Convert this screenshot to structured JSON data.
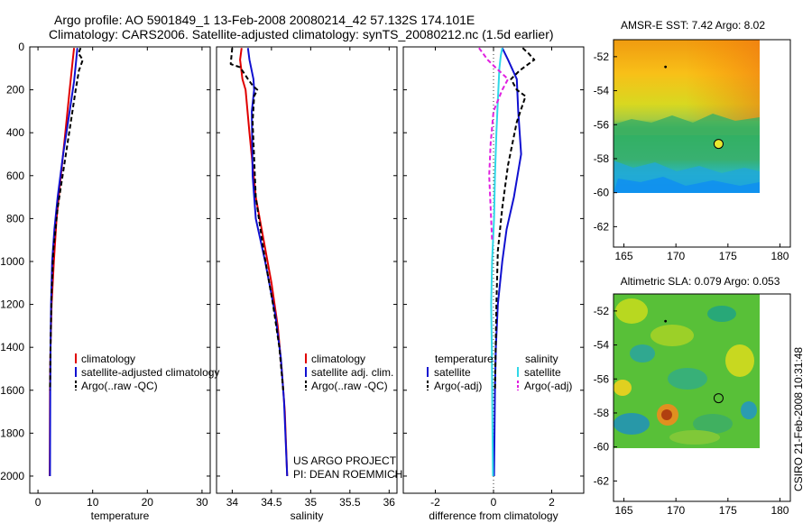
{
  "header": {
    "title_line1": "Argo profile: AO 5901849_1 13-Feb-2008 20080214_42 57.132S 174.101E",
    "title_line2": "Climatology: CARS2006. Satellite-adjusted climatology: synTS_20080212.nc (1.5d earlier)"
  },
  "footer": {
    "credit": "CSIRO 21-Feb-2008 10:31:48",
    "project_line1": "US ARGO PROJECT",
    "project_line2": "PI: DEAN ROEMMICH"
  },
  "colors": {
    "climatology": "#e00000",
    "satellite": "#1010d0",
    "argo": "#000000",
    "argo_adj_salinity": "#e020e0",
    "satellite_salinity": "#30d8e8"
  },
  "chart_data": [
    {
      "id": "temperature",
      "type": "line",
      "xlabel": "temperature",
      "ylabel": "",
      "xlim": [
        -1.5,
        31.5
      ],
      "ylim": [
        2080,
        0
      ],
      "xticks": [
        0,
        10,
        20,
        30
      ],
      "xtick_labels": [
        "0",
        "10",
        "20",
        "30"
      ],
      "yticks": [
        0,
        200,
        400,
        600,
        800,
        1000,
        1200,
        1400,
        1600,
        1800,
        2000
      ],
      "ytick_labels": [
        "0",
        "200",
        "400",
        "600",
        "800",
        "1000",
        "1200",
        "1400",
        "1600",
        "1800",
        "2000"
      ],
      "legend": [
        "climatology",
        "satellite-adjusted climatology",
        "Argo(..raw -QC)"
      ],
      "series": [
        {
          "name": "climatology",
          "color": "#e00000",
          "dash": "",
          "x": [
            6.6,
            6.3,
            5.8,
            5.0,
            4.2,
            3.4,
            2.9,
            2.5,
            2.3,
            2.2,
            2.15
          ],
          "y": [
            5,
            75,
            200,
            400,
            600,
            800,
            1000,
            1200,
            1400,
            1600,
            2000
          ]
        },
        {
          "name": "satellite-adjusted climatology",
          "color": "#1010d0",
          "dash": "",
          "x": [
            7.2,
            7.0,
            6.6,
            5.8,
            4.6,
            3.6,
            3.0,
            2.6,
            2.4,
            2.3,
            2.25,
            2.2
          ],
          "y": [
            5,
            60,
            160,
            300,
            500,
            700,
            850,
            1000,
            1200,
            1400,
            1600,
            2000
          ]
        },
        {
          "name": "Argo(..raw -QC)",
          "color": "#000000",
          "dash": "5,3",
          "x": [
            7.8,
            7.4,
            8.2,
            7.5,
            6.9,
            6.0,
            4.8,
            3.6,
            2.8,
            2.5,
            2.3,
            2.2
          ],
          "y": [
            5,
            30,
            60,
            110,
            200,
            350,
            550,
            750,
            950,
            1150,
            1400,
            1600
          ]
        }
      ]
    },
    {
      "id": "salinity",
      "type": "line",
      "xlabel": "salinity",
      "ylabel": "",
      "xlim": [
        33.8,
        36.1
      ],
      "ylim": [
        2080,
        0
      ],
      "xticks": [
        34,
        34.5,
        35,
        35.5,
        36
      ],
      "xtick_labels": [
        "34",
        "34.5",
        "35",
        "35.5",
        "36"
      ],
      "legend": [
        "climatology",
        "satellite adj. clim.",
        "Argo(..raw -QC)"
      ],
      "series": [
        {
          "name": "climatology",
          "color": "#e00000",
          "dash": "",
          "x": [
            34.12,
            34.1,
            34.13,
            34.17,
            34.22,
            34.3,
            34.4,
            34.5,
            34.58,
            34.63,
            34.67,
            34.7
          ],
          "y": [
            5,
            60,
            150,
            200,
            400,
            700,
            900,
            1100,
            1300,
            1500,
            1700,
            2000
          ]
        },
        {
          "name": "satellite adj. clim.",
          "color": "#1010d0",
          "dash": "",
          "x": [
            34.2,
            34.22,
            34.27,
            34.28,
            34.25,
            34.26,
            34.3,
            34.42,
            34.55,
            34.62,
            34.66,
            34.7
          ],
          "y": [
            5,
            60,
            150,
            200,
            300,
            600,
            800,
            1000,
            1250,
            1450,
            1650,
            2000
          ]
        },
        {
          "name": "Argo(..raw -QC)",
          "color": "#000000",
          "dash": "5,3",
          "x": [
            34.0,
            33.98,
            34.1,
            34.2,
            34.26,
            34.32,
            34.28,
            34.26,
            34.3,
            34.4,
            34.52,
            34.6,
            34.65
          ],
          "y": [
            5,
            80,
            95,
            150,
            180,
            200,
            230,
            350,
            700,
            950,
            1200,
            1400,
            1600
          ]
        }
      ]
    },
    {
      "id": "difference",
      "type": "line",
      "xlabel": "difference from climatology",
      "ylabel": "",
      "xlim": [
        -3.1,
        3.1
      ],
      "ylim": [
        2080,
        0
      ],
      "xticks": [
        -2,
        0,
        2
      ],
      "xtick_labels": [
        "-2",
        "0",
        "2"
      ],
      "legend_groups": [
        "temperature",
        "salinity"
      ],
      "legend": [
        "satellite",
        "Argo(-adj)",
        "satellite",
        "Argo(-adj)"
      ],
      "series": [
        {
          "name": "temperature satellite",
          "color": "#1010d0",
          "dash": "",
          "x": [
            0.3,
            0.5,
            0.8,
            0.85,
            0.95,
            0.7,
            0.45,
            0.3,
            0.15,
            0.08,
            0.05,
            0.02
          ],
          "y": [
            5,
            60,
            150,
            300,
            500,
            700,
            850,
            1000,
            1200,
            1400,
            1600,
            2000
          ]
        },
        {
          "name": "temperature Argo(-adj)",
          "color": "#000000",
          "dash": "5,3",
          "x": [
            1.0,
            1.2,
            1.4,
            0.9,
            0.6,
            0.8,
            1.1,
            0.8,
            0.5,
            0.3,
            0.15,
            0.1,
            0.05
          ],
          "y": [
            5,
            30,
            60,
            110,
            150,
            200,
            230,
            350,
            550,
            750,
            950,
            1200,
            1600
          ]
        },
        {
          "name": "salinity satellite",
          "color": "#30d8e8",
          "dash": "",
          "x": [
            0.3,
            0.25,
            0.2,
            0.15,
            0.1,
            0.05,
            0.02,
            -0.05,
            -0.08,
            -0.06,
            -0.04,
            -0.02
          ],
          "y": [
            5,
            40,
            100,
            250,
            400,
            600,
            800,
            1000,
            1200,
            1400,
            1700,
            2000
          ]
        },
        {
          "name": "salinity Argo(-adj)",
          "color": "#e020e0",
          "dash": "5,3",
          "x": [
            -0.5,
            -0.2,
            0.1,
            0.5,
            0.3,
            0.0,
            -0.1,
            -0.15,
            -0.1,
            -0.05
          ],
          "y": [
            5,
            60,
            100,
            150,
            200,
            300,
            450,
            600,
            750,
            900
          ]
        }
      ]
    },
    {
      "id": "sst-map",
      "type": "heatmap",
      "title": "AMSR-E SST: 7.42  Argo: 8.02",
      "xlim": [
        164,
        181
      ],
      "ylim": [
        -63.2,
        -51
      ],
      "xticks": [
        165,
        170,
        175,
        180
      ],
      "xtick_labels": [
        "165",
        "170",
        "175",
        "180"
      ],
      "yticks": [
        -52,
        -54,
        -56,
        -58,
        -60,
        -62
      ],
      "ytick_labels": [
        "-52",
        "-54",
        "-56",
        "-58",
        "-60",
        "-62"
      ],
      "data_extent": {
        "lon": [
          164,
          180
        ],
        "lat": [
          -60,
          -51
        ]
      },
      "float_position": {
        "lon": 174.1,
        "lat": -57.13
      }
    },
    {
      "id": "sla-map",
      "type": "heatmap",
      "title": "Altimetric SLA: 0.079  Argo: 0.053",
      "xlim": [
        164,
        181
      ],
      "ylim": [
        -63.2,
        -51
      ],
      "xticks": [
        165,
        170,
        175,
        180
      ],
      "xtick_labels": [
        "165",
        "170",
        "175",
        "180"
      ],
      "yticks": [
        -52,
        -54,
        -56,
        -58,
        -60,
        -62
      ],
      "ytick_labels": [
        "-52",
        "-54",
        "-56",
        "-58",
        "-60",
        "-62"
      ],
      "data_extent": {
        "lon": [
          164,
          180
        ],
        "lat": [
          -60,
          -51
        ]
      },
      "float_position": {
        "lon": 174.1,
        "lat": -57.13
      }
    }
  ]
}
